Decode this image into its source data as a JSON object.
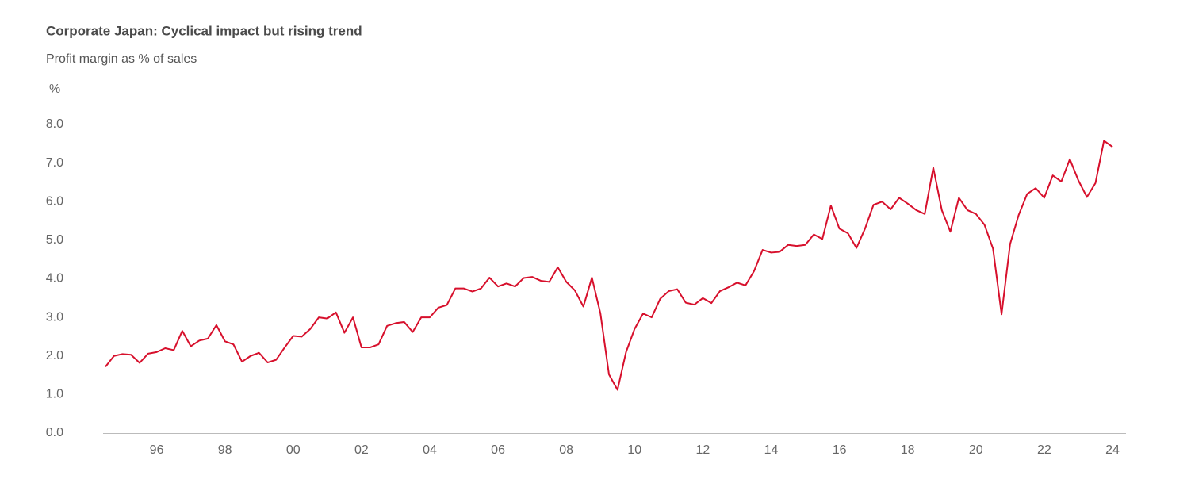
{
  "chart_data": {
    "type": "line",
    "title": "Corporate Japan: Cyclical impact but rising trend",
    "subtitle": "Profit margin as % of sales",
    "y_label": "%",
    "color": "#d7102c",
    "categories": [
      null,
      null,
      null,
      null,
      null,
      null,
      "96",
      null,
      null,
      null,
      null,
      null,
      null,
      null,
      "98",
      null,
      null,
      null,
      null,
      null,
      null,
      null,
      "00",
      null,
      null,
      null,
      null,
      null,
      null,
      null,
      "02",
      null,
      null,
      null,
      null,
      null,
      null,
      null,
      "04",
      null,
      null,
      null,
      null,
      null,
      null,
      null,
      "06",
      null,
      null,
      null,
      null,
      null,
      null,
      null,
      "08",
      null,
      null,
      null,
      null,
      null,
      null,
      null,
      "10",
      null,
      null,
      null,
      null,
      null,
      null,
      null,
      "12",
      null,
      null,
      null,
      null,
      null,
      null,
      null,
      "14",
      null,
      null,
      null,
      null,
      null,
      null,
      null,
      "16",
      null,
      null,
      null,
      null,
      null,
      null,
      null,
      "18",
      null,
      null,
      null,
      null,
      null,
      null,
      null,
      "20",
      null,
      null,
      null,
      null,
      null,
      null,
      null,
      "22",
      null,
      null,
      null,
      null,
      null,
      null,
      null,
      "24"
    ],
    "values": [
      1.72,
      2.0,
      2.05,
      2.03,
      1.82,
      2.06,
      2.1,
      2.2,
      2.15,
      2.65,
      2.25,
      2.4,
      2.45,
      2.8,
      2.38,
      2.3,
      1.85,
      2.0,
      2.08,
      1.83,
      1.9,
      2.22,
      2.52,
      2.5,
      2.7,
      3.0,
      2.97,
      3.13,
      2.6,
      3.0,
      2.22,
      2.22,
      2.3,
      2.78,
      2.85,
      2.88,
      2.62,
      3.0,
      3.0,
      3.25,
      3.32,
      3.75,
      3.75,
      3.67,
      3.75,
      4.03,
      3.8,
      3.88,
      3.8,
      4.02,
      4.05,
      3.95,
      3.92,
      4.3,
      3.92,
      3.7,
      3.28,
      4.03,
      3.1,
      1.52,
      1.12,
      2.1,
      2.7,
      3.1,
      3.0,
      3.48,
      3.68,
      3.73,
      3.38,
      3.33,
      3.5,
      3.37,
      3.68,
      3.78,
      3.9,
      3.83,
      4.2,
      4.75,
      4.68,
      4.7,
      4.88,
      4.85,
      4.88,
      5.15,
      5.03,
      5.9,
      5.3,
      5.18,
      4.8,
      5.3,
      5.92,
      6.0,
      5.8,
      6.1,
      5.95,
      5.78,
      5.68,
      6.88,
      5.78,
      5.22,
      6.1,
      5.78,
      5.68,
      5.4,
      4.78,
      3.08,
      4.9,
      5.65,
      6.2,
      6.35,
      6.1,
      6.68,
      6.52,
      7.1,
      6.55,
      6.12,
      6.48,
      7.58,
      7.42
    ],
    "ylim": [
      0,
      8
    ],
    "yticks": [
      {
        "value": 0,
        "label": "0.0"
      },
      {
        "value": 1,
        "label": "1.0"
      },
      {
        "value": 2,
        "label": "2.0"
      },
      {
        "value": 3,
        "label": "3.0"
      },
      {
        "value": 4,
        "label": "4.0"
      },
      {
        "value": 5,
        "label": "5.0"
      },
      {
        "value": 6,
        "label": "6.0"
      },
      {
        "value": 7,
        "label": "7.0"
      },
      {
        "value": 8,
        "label": "8.0"
      }
    ],
    "grid": false
  }
}
